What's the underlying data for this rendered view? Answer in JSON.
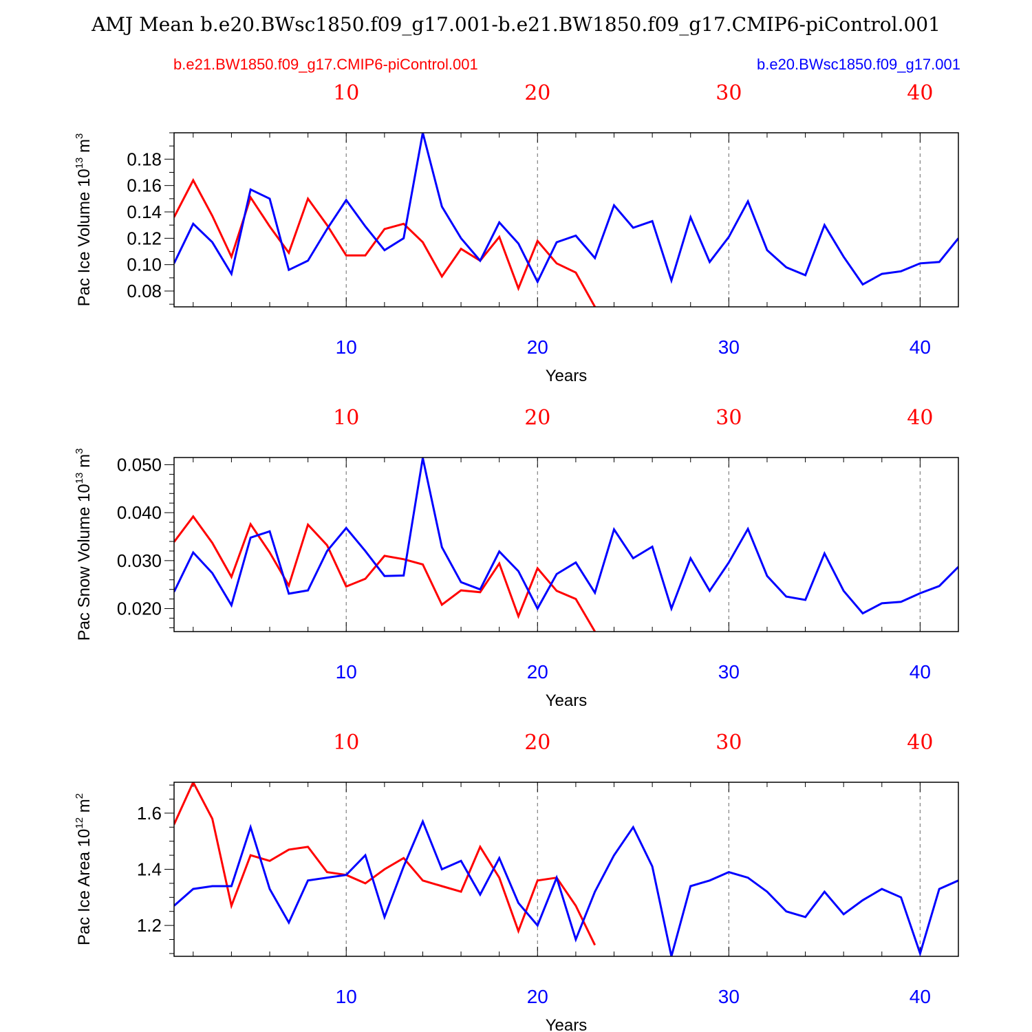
{
  "title": "AMJ Mean b.e20.BWsc1850.f09_g17.001-b.e21.BW1850.f09_g17.CMIP6-piControl.001",
  "legend": {
    "red_case": "b.e21.BW1850.f09_g17.CMIP6-piControl.001",
    "blue_case": "b.e20.BWsc1850.f09_g17.001"
  },
  "colors": {
    "red": "#ff0000",
    "blue": "#0000ff",
    "grid": "#808080",
    "axis": "#000000"
  },
  "chart_data": [
    {
      "type": "line",
      "ylabel": "Pac Ice Volume 10",
      "ylabel_exp": "13",
      "ylabel_unit": " m",
      "ylabel_unit_exp": "3",
      "xlabel": "Years",
      "xlim": [
        1,
        42
      ],
      "ylim": [
        0.068,
        0.2
      ],
      "yticks": [
        0.08,
        0.1,
        0.12,
        0.14,
        0.16,
        0.18
      ],
      "ytick_labels": [
        "0.08",
        "0.10",
        "0.12",
        "0.14",
        "0.16",
        "0.18"
      ],
      "yminor": 0.01,
      "xticks": [
        10,
        20,
        30,
        40
      ],
      "xtick_labels": [
        "10",
        "20",
        "30",
        "40"
      ],
      "series": [
        {
          "name": "b.e21.BW1850.f09_g17.CMIP6-piControl.001",
          "color": "red",
          "values": [
            0.136,
            0.164,
            0.137,
            0.106,
            0.151,
            0.129,
            0.109,
            0.15,
            0.13,
            0.107,
            0.107,
            0.127,
            0.131,
            0.117,
            0.091,
            0.112,
            0.103,
            0.121,
            0.082,
            0.118,
            0.101,
            0.094,
            0.068
          ]
        },
        {
          "name": "b.e20.BWsc1850.f09_g17.001",
          "color": "blue",
          "values": [
            0.101,
            0.131,
            0.117,
            0.093,
            0.157,
            0.15,
            0.096,
            0.103,
            0.127,
            0.149,
            0.129,
            0.111,
            0.12,
            0.2,
            0.144,
            0.12,
            0.103,
            0.132,
            0.116,
            0.087,
            0.117,
            0.122,
            0.105,
            0.145,
            0.128,
            0.133,
            0.088,
            0.136,
            0.102,
            0.121,
            0.148,
            0.111,
            0.098,
            0.092,
            0.13,
            0.106,
            0.085,
            0.093,
            0.095,
            0.101,
            0.102,
            0.12
          ]
        }
      ]
    },
    {
      "type": "line",
      "ylabel": "Pac Snow Volume 10",
      "ylabel_exp": "13",
      "ylabel_unit": " m",
      "ylabel_unit_exp": "3",
      "xlabel": "Years",
      "xlim": [
        1,
        42
      ],
      "ylim": [
        0.0152,
        0.0515
      ],
      "yticks": [
        0.02,
        0.03,
        0.04,
        0.05
      ],
      "ytick_labels": [
        "0.020",
        "0.030",
        "0.040",
        "0.050"
      ],
      "yminor": 0.002,
      "xticks": [
        10,
        20,
        30,
        40
      ],
      "xtick_labels": [
        "10",
        "20",
        "30",
        "40"
      ],
      "series": [
        {
          "name": "b.e21.BW1850.f09_g17.CMIP6-piControl.001",
          "color": "red",
          "values": [
            0.0339,
            0.0392,
            0.0337,
            0.0266,
            0.0376,
            0.0317,
            0.0248,
            0.0375,
            0.0332,
            0.0246,
            0.0262,
            0.031,
            0.0303,
            0.0292,
            0.0208,
            0.0238,
            0.0234,
            0.0294,
            0.0184,
            0.0284,
            0.0237,
            0.022,
            0.0152
          ]
        },
        {
          "name": "b.e20.BWsc1850.f09_g17.001",
          "color": "blue",
          "values": [
            0.0235,
            0.0317,
            0.0274,
            0.0207,
            0.0348,
            0.0361,
            0.0231,
            0.0238,
            0.032,
            0.0368,
            0.032,
            0.0268,
            0.0269,
            0.0514,
            0.0328,
            0.0255,
            0.024,
            0.0319,
            0.0278,
            0.02,
            0.0272,
            0.0296,
            0.0233,
            0.0365,
            0.0305,
            0.0329,
            0.02,
            0.0305,
            0.0237,
            0.0296,
            0.0366,
            0.0268,
            0.0225,
            0.0218,
            0.0315,
            0.0237,
            0.019,
            0.0211,
            0.0214,
            0.0232,
            0.0247,
            0.0287
          ]
        }
      ]
    },
    {
      "type": "line",
      "ylabel": "Pac Ice Area 10",
      "ylabel_exp": "12",
      "ylabel_unit": " m",
      "ylabel_unit_exp": "2",
      "xlabel": "Years",
      "xlim": [
        1,
        42
      ],
      "ylim": [
        1.09,
        1.71
      ],
      "yticks": [
        1.2,
        1.4,
        1.6
      ],
      "ytick_labels": [
        "1.2",
        "1.4",
        "1.6"
      ],
      "yminor": 0.05,
      "xticks": [
        10,
        20,
        30,
        40
      ],
      "xtick_labels": [
        "10",
        "20",
        "30",
        "40"
      ],
      "series": [
        {
          "name": "b.e21.BW1850.f09_g17.CMIP6-piControl.001",
          "color": "red",
          "values": [
            1.56,
            1.71,
            1.58,
            1.27,
            1.45,
            1.43,
            1.47,
            1.48,
            1.39,
            1.38,
            1.35,
            1.4,
            1.44,
            1.36,
            1.34,
            1.32,
            1.48,
            1.37,
            1.18,
            1.36,
            1.37,
            1.27,
            1.13
          ]
        },
        {
          "name": "b.e20.BWsc1850.f09_g17.001",
          "color": "blue",
          "values": [
            1.27,
            1.33,
            1.34,
            1.34,
            1.55,
            1.33,
            1.21,
            1.36,
            1.37,
            1.38,
            1.45,
            1.23,
            1.41,
            1.57,
            1.4,
            1.43,
            1.31,
            1.44,
            1.28,
            1.2,
            1.37,
            1.15,
            1.32,
            1.45,
            1.55,
            1.41,
            1.09,
            1.34,
            1.36,
            1.39,
            1.37,
            1.32,
            1.25,
            1.23,
            1.32,
            1.24,
            1.29,
            1.33,
            1.3,
            1.1,
            1.33,
            1.36
          ]
        }
      ]
    }
  ]
}
